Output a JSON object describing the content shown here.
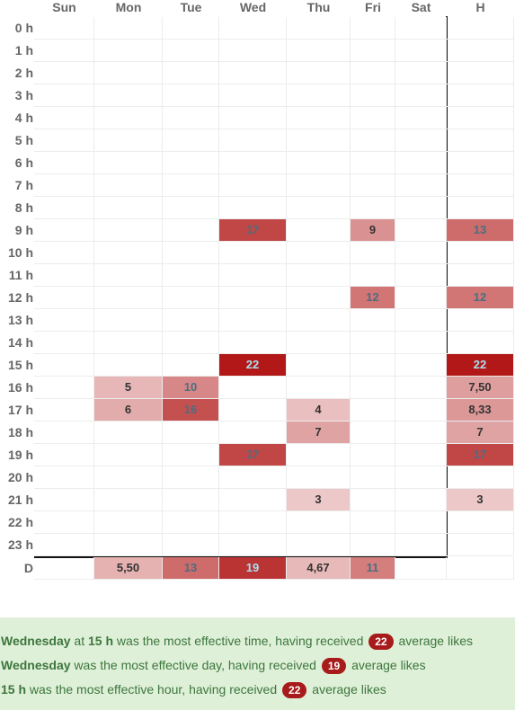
{
  "heatmap": {
    "col_headers": [
      "Sun",
      "Mon",
      "Tue",
      "Wed",
      "Thu",
      "Fri",
      "Sat",
      "H"
    ],
    "row_labels": [
      "0 h",
      "1 h",
      "2 h",
      "3 h",
      "4 h",
      "5 h",
      "6 h",
      "7 h",
      "8 h",
      "9 h",
      "10 h",
      "11 h",
      "12 h",
      "13 h",
      "14 h",
      "15 h",
      "16 h",
      "17 h",
      "18 h",
      "19 h",
      "20 h",
      "21 h",
      "22 h",
      "23 h",
      "D"
    ],
    "rows": [
      [
        "",
        "",
        "",
        "",
        "",
        "",
        "",
        ""
      ],
      [
        "",
        "",
        "",
        "",
        "",
        "",
        "",
        ""
      ],
      [
        "",
        "",
        "",
        "",
        "",
        "",
        "",
        ""
      ],
      [
        "",
        "",
        "",
        "",
        "",
        "",
        "",
        ""
      ],
      [
        "",
        "",
        "",
        "",
        "",
        "",
        "",
        ""
      ],
      [
        "",
        "",
        "",
        "",
        "",
        "",
        "",
        ""
      ],
      [
        "",
        "",
        "",
        "",
        "",
        "",
        "",
        ""
      ],
      [
        "",
        "",
        "",
        "",
        "",
        "",
        "",
        ""
      ],
      [
        "",
        "",
        "",
        "",
        "",
        "",
        "",
        ""
      ],
      [
        "",
        "",
        "",
        "17",
        "",
        "9",
        "",
        "13"
      ],
      [
        "",
        "",
        "",
        "",
        "",
        "",
        "",
        ""
      ],
      [
        "",
        "",
        "",
        "",
        "",
        "",
        "",
        ""
      ],
      [
        "",
        "",
        "",
        "",
        "",
        "12",
        "",
        "12"
      ],
      [
        "",
        "",
        "",
        "",
        "",
        "",
        "",
        ""
      ],
      [
        "",
        "",
        "",
        "",
        "",
        "",
        "",
        ""
      ],
      [
        "",
        "",
        "",
        "22",
        "",
        "",
        "",
        "22"
      ],
      [
        "",
        "5",
        "10",
        "",
        "",
        "",
        "",
        "7,50"
      ],
      [
        "",
        "6",
        "16",
        "",
        "4",
        "",
        "",
        "8,33"
      ],
      [
        "",
        "",
        "",
        "",
        "7",
        "",
        "",
        "7"
      ],
      [
        "",
        "",
        "",
        "17",
        "",
        "",
        "",
        "17"
      ],
      [
        "",
        "",
        "",
        "",
        "",
        "",
        "",
        ""
      ],
      [
        "",
        "",
        "",
        "",
        "3",
        "",
        "",
        "3"
      ],
      [
        "",
        "",
        "",
        "",
        "",
        "",
        "",
        ""
      ],
      [
        "",
        "",
        "",
        "",
        "",
        "",
        "",
        ""
      ],
      [
        "",
        "5,50",
        "13",
        "19",
        "4,67",
        "11",
        "",
        ""
      ]
    ],
    "max_value": 22
  },
  "summary": {
    "line1": {
      "day": "Wednesday",
      "t1": " at ",
      "hour": "15 h",
      "t2": " was the most effective time, having received ",
      "value": "22",
      "t3": " average likes"
    },
    "line2": {
      "day": "Wednesday",
      "t2": " was the most effective day, having received ",
      "value": "19",
      "t3": " average likes"
    },
    "line3": {
      "hour": "15 h",
      "t2": " was the most effective hour, having received ",
      "value": "22",
      "t3": " average likes"
    }
  }
}
